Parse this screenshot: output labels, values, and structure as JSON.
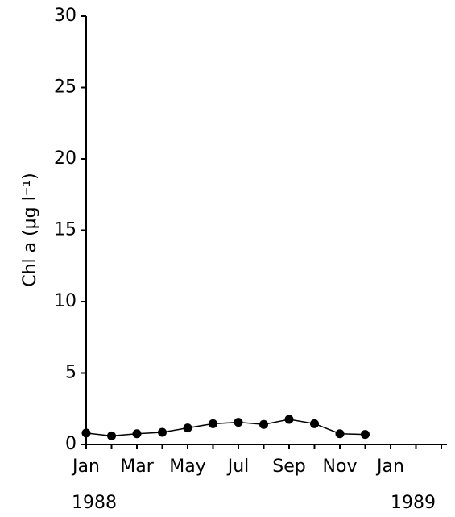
{
  "chart_data": {
    "type": "line",
    "y_label": "Chl a (μg l⁻¹)",
    "categories": [
      "Jan",
      null,
      "Mar",
      null,
      "May",
      null,
      "Jul",
      null,
      "Sep",
      null,
      "Nov",
      null,
      "Jan",
      null,
      null
    ],
    "year_labels": [
      "1988",
      "1989"
    ],
    "series": [
      {
        "name": "Chl a",
        "color": "#000000",
        "values": [
          0.8,
          0.6,
          0.75,
          0.85,
          1.15,
          1.45,
          1.55,
          1.4,
          1.75,
          1.45,
          0.75,
          0.7,
          null,
          null,
          null
        ]
      }
    ],
    "ylim": [
      0,
      30
    ],
    "yticks": [
      0,
      5,
      10,
      15,
      20,
      25,
      30
    ],
    "grid": false
  }
}
